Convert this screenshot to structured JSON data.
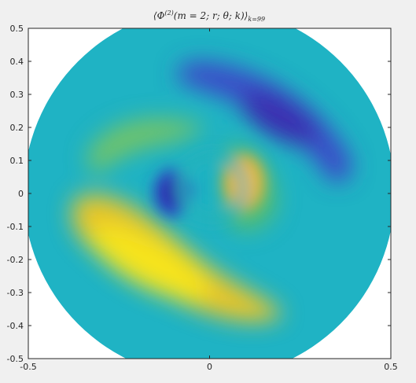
{
  "chart_data": {
    "type": "heatmap",
    "title": "⟨Φ(2)(m = 2; r; θ; k)⟩k=99",
    "title_parts": {
      "main": "⟨Φ",
      "sup": "(2)",
      "args": "(m = 2; r; θ; k)⟩",
      "sub": "k=99"
    },
    "xlabel": "",
    "ylabel": "",
    "xlim": [
      -0.5,
      0.5
    ],
    "ylim": [
      -0.5,
      0.5
    ],
    "xticks": [
      -0.5,
      0,
      0.5
    ],
    "xtick_labels": [
      "-0.5",
      "0",
      "0.5"
    ],
    "yticks": [
      0.5,
      0.4,
      0.3,
      0.2,
      0.1,
      0,
      -0.1,
      -0.2,
      -0.3,
      -0.4,
      -0.5
    ],
    "ytick_labels": [
      "0.5",
      "0.4",
      "0.3",
      "0.2",
      "0.1",
      "0",
      "-0.1",
      "-0.2",
      "-0.3",
      "-0.4",
      "-0.5"
    ],
    "domain": "disk",
    "domain_radius": 0.5,
    "colormap": "parula",
    "features": [
      {
        "kind": "minimum",
        "x": -0.12,
        "y": 0.0
      },
      {
        "kind": "maximum",
        "x": 0.1,
        "y": 0.02
      },
      {
        "kind": "minimum",
        "x": 0.22,
        "y": 0.25
      },
      {
        "kind": "maximum",
        "x": -0.22,
        "y": -0.25
      }
    ],
    "grid": false,
    "legend": "none"
  }
}
